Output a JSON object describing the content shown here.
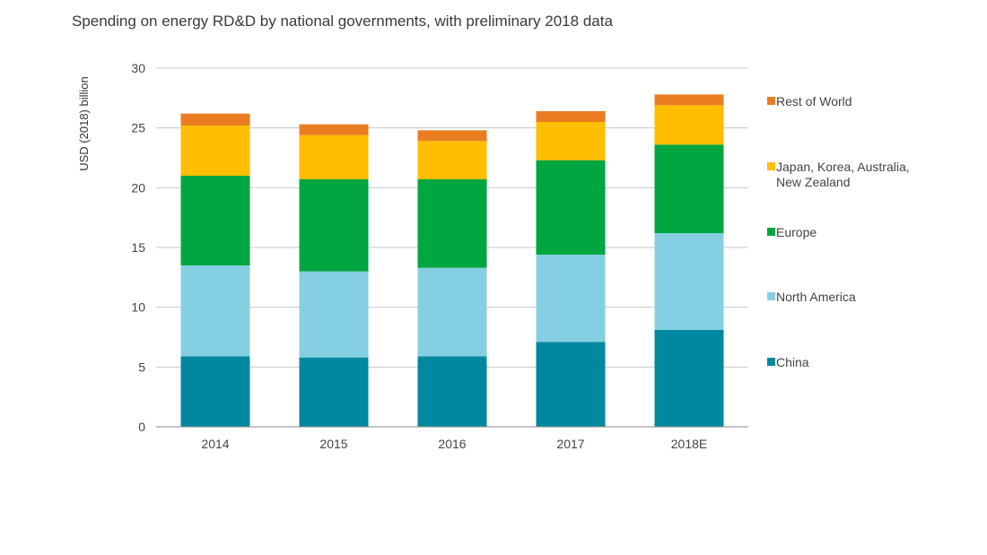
{
  "chart_data": {
    "type": "bar",
    "stacked": true,
    "title": "Spending on energy RD&D by national governments, with preliminary 2018 data",
    "xlabel": "",
    "ylabel": "USD (2018) billion",
    "ylim": [
      0,
      30
    ],
    "yticks": [
      0,
      5,
      10,
      15,
      20,
      25,
      30
    ],
    "grid": true,
    "legend_position": "right",
    "categories": [
      "2014",
      "2015",
      "2016",
      "2017",
      "2018E"
    ],
    "series": [
      {
        "name": "China",
        "color": "#00889e",
        "values": [
          5.9,
          5.8,
          5.9,
          7.1,
          8.1
        ]
      },
      {
        "name": "North America",
        "color": "#84d0e2",
        "values": [
          7.6,
          7.2,
          7.4,
          7.3,
          8.1
        ]
      },
      {
        "name": "Europe",
        "color": "#00a63f",
        "values": [
          7.5,
          7.7,
          7.4,
          7.9,
          7.4
        ]
      },
      {
        "name": "Japan, Korea, Australia, New Zealand",
        "color": "#ffbe00",
        "values": [
          4.2,
          3.7,
          3.2,
          3.2,
          3.3
        ]
      },
      {
        "name": "Rest of World",
        "color": "#ea7d22",
        "values": [
          1.0,
          0.9,
          0.9,
          0.9,
          0.9
        ]
      }
    ]
  }
}
